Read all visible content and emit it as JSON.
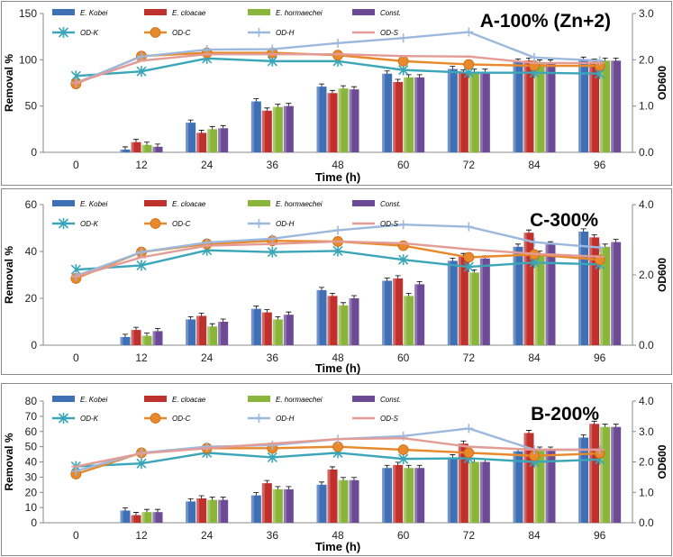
{
  "colors": {
    "bars": [
      "#3f6fb4",
      "#c0312e",
      "#8ab53b",
      "#6d4a96"
    ],
    "lines": [
      "#3aa6b8",
      "#e8892b",
      "#9db8dd",
      "#e39b95"
    ]
  },
  "chart_data": [
    {
      "type": "bar",
      "title": "A-100% (Zn+2)",
      "xlabel": "Time (h)",
      "ylabel": "Removal %",
      "y2label": "OD600",
      "ylim": [
        0,
        150
      ],
      "yticks": [
        0,
        50,
        100,
        150
      ],
      "y2lim": [
        0,
        3
      ],
      "y2ticks": [
        "0.0",
        "1.0",
        "2.0",
        "3.0"
      ],
      "categories": [
        "0",
        "12",
        "24",
        "36",
        "48",
        "60",
        "72",
        "84",
        "96"
      ],
      "bar_series": [
        {
          "name": "E. Kobei",
          "values": [
            0,
            3,
            32,
            55,
            71,
            85,
            90,
            98,
            100
          ]
        },
        {
          "name": "E. cloacae",
          "values": [
            0,
            11,
            21,
            45,
            64,
            76,
            86,
            99,
            98
          ]
        },
        {
          "name": "E. hormaechei",
          "values": [
            0,
            8,
            25,
            49,
            69,
            81,
            87,
            97,
            99
          ]
        },
        {
          "name": "Const.",
          "values": [
            0,
            6,
            26,
            50,
            68,
            81,
            87,
            97,
            99
          ]
        }
      ],
      "line_series": [
        {
          "name": "OD-K",
          "values": [
            1.65,
            1.75,
            2.03,
            1.97,
            1.97,
            1.78,
            1.72,
            1.72,
            1.7
          ]
        },
        {
          "name": "OD-C",
          "values": [
            1.48,
            2.08,
            2.15,
            2.15,
            2.1,
            1.97,
            1.9,
            1.87,
            1.87
          ]
        },
        {
          "name": "OD-H",
          "values": [
            1.5,
            2.07,
            2.22,
            2.23,
            2.36,
            2.47,
            2.6,
            2.05,
            1.98
          ]
        },
        {
          "name": "OD-S",
          "values": [
            1.5,
            1.98,
            2.12,
            2.12,
            2.12,
            2.08,
            2.07,
            1.93,
            1.93
          ]
        }
      ]
    },
    {
      "type": "bar",
      "title": "C-300%",
      "xlabel": "Time (h)",
      "ylabel": "Removal %",
      "y2label": "OD600",
      "ylim": [
        0,
        60
      ],
      "yticks": [
        0,
        20,
        40,
        60
      ],
      "y2lim": [
        0,
        4
      ],
      "y2ticks": [
        "0.0",
        "2.0",
        "4.0"
      ],
      "categories": [
        "0",
        "12",
        "24",
        "36",
        "48",
        "60",
        "72",
        "84",
        "96"
      ],
      "bar_series": [
        {
          "name": "E. Kobei",
          "values": [
            0,
            3.5,
            11,
            15.5,
            23.5,
            27.5,
            36,
            42,
            48.5
          ]
        },
        {
          "name": "E. cloacae",
          "values": [
            0,
            6.5,
            12.5,
            14,
            21,
            28.5,
            38,
            48,
            46
          ]
        },
        {
          "name": "E. hormaechei",
          "values": [
            0,
            4,
            8,
            11,
            17,
            21,
            31,
            39,
            42
          ]
        },
        {
          "name": "Const.",
          "values": [
            0,
            6,
            10,
            13,
            20,
            26,
            37,
            43,
            44
          ]
        }
      ],
      "line_series": [
        {
          "name": "OD-K",
          "values": [
            2.15,
            2.27,
            2.7,
            2.65,
            2.68,
            2.43,
            2.23,
            2.35,
            2.3
          ]
        },
        {
          "name": "OD-C",
          "values": [
            1.9,
            2.65,
            2.88,
            2.97,
            2.95,
            2.83,
            2.5,
            2.58,
            2.43
          ]
        },
        {
          "name": "OD-H",
          "values": [
            1.97,
            2.65,
            2.92,
            3.03,
            3.27,
            3.43,
            3.37,
            2.93,
            2.78
          ]
        },
        {
          "name": "OD-S",
          "values": [
            1.95,
            2.5,
            2.83,
            2.88,
            2.95,
            2.9,
            2.73,
            2.6,
            2.52
          ]
        }
      ]
    },
    {
      "type": "bar",
      "title": "B-200%",
      "xlabel": "Time (h)",
      "ylabel": "Removal %",
      "y2label": "OD600",
      "ylim": [
        0,
        80
      ],
      "yticks": [
        0,
        10,
        20,
        30,
        40,
        50,
        60,
        70,
        80
      ],
      "y2lim": [
        0,
        4
      ],
      "y2ticks": [
        "0.0",
        "1.0",
        "2.0",
        "3.0",
        "4.0"
      ],
      "categories": [
        "0",
        "12",
        "24",
        "36",
        "48",
        "60",
        "72",
        "84",
        "96"
      ],
      "bar_series": [
        {
          "name": "E. Kobei",
          "values": [
            0,
            8,
            14,
            18,
            25,
            36,
            43,
            47,
            56
          ]
        },
        {
          "name": "E. cloacae",
          "values": [
            0,
            5,
            16,
            26,
            35,
            38,
            52,
            59,
            65
          ]
        },
        {
          "name": "E. hormaechei",
          "values": [
            0,
            7,
            15,
            22,
            28,
            36,
            40,
            48,
            63
          ]
        },
        {
          "name": "Const.",
          "values": [
            0,
            7,
            15,
            22,
            28,
            36,
            40,
            48,
            63
          ]
        }
      ],
      "line_series": [
        {
          "name": "OD-K",
          "values": [
            1.85,
            1.95,
            2.3,
            2.15,
            2.3,
            2.1,
            2.12,
            2.0,
            2.08
          ]
        },
        {
          "name": "OD-C",
          "values": [
            1.6,
            2.3,
            2.45,
            2.45,
            2.5,
            2.4,
            2.3,
            2.2,
            2.28
          ]
        },
        {
          "name": "OD-H",
          "values": [
            1.7,
            2.3,
            2.5,
            2.55,
            2.75,
            2.85,
            3.1,
            2.4,
            2.4
          ]
        },
        {
          "name": "OD-S",
          "values": [
            1.85,
            2.28,
            2.45,
            2.6,
            2.75,
            2.78,
            2.5,
            2.4,
            2.4
          ]
        }
      ]
    }
  ]
}
